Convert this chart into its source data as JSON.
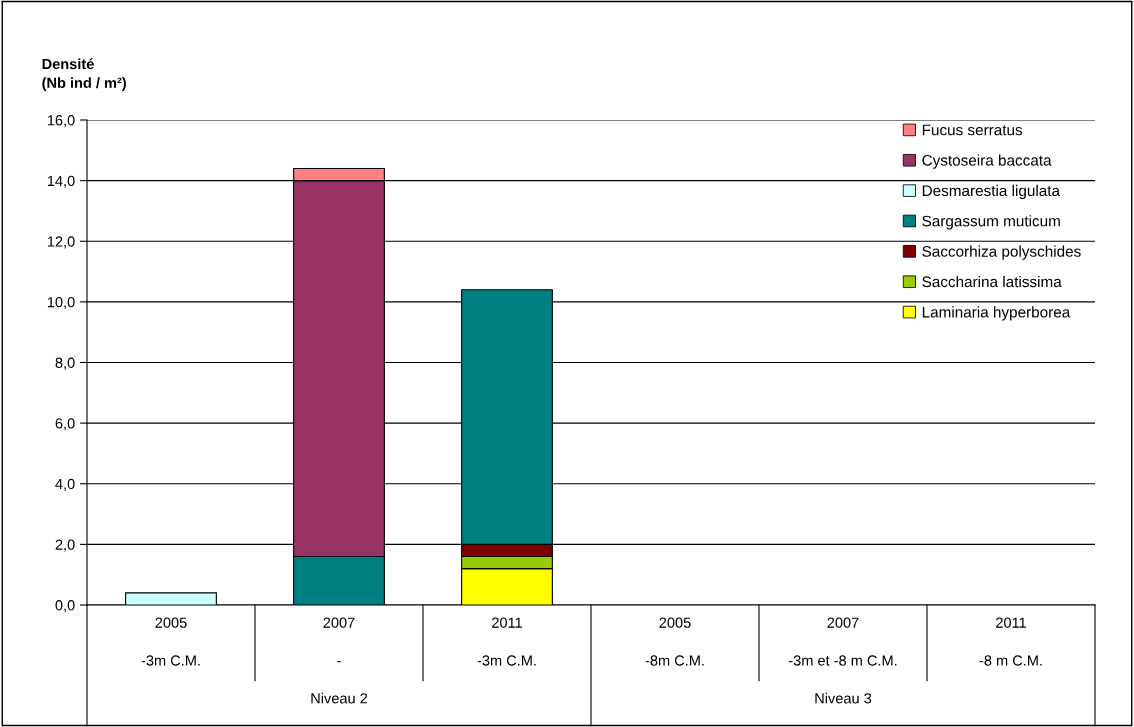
{
  "chart_data": {
    "type": "bar",
    "stacked": true,
    "ylabel": "Densité\n(Nb ind / m²)",
    "categories": [
      "2005",
      "2007",
      "2011",
      "2005",
      "2007",
      "2011"
    ],
    "annotations": [
      "-3m C.M.",
      "-",
      "-3m C.M.",
      "-8m C.M.",
      "-3m et -8 m C.M.",
      "-8 m C.M.",
      "Niveau 2",
      "Niveau 3"
    ],
    "series": [
      {
        "name": "Laminaria hyperborea",
        "color": "#ffff00",
        "values": [
          0,
          0,
          1.2,
          0,
          0,
          0
        ]
      },
      {
        "name": "Saccharina latissima",
        "color": "#99cc00",
        "values": [
          0,
          0,
          0.4,
          0,
          0,
          0
        ]
      },
      {
        "name": "Saccorhiza polyschides",
        "color": "#800000",
        "values": [
          0,
          0,
          0.4,
          0,
          0,
          0
        ]
      },
      {
        "name": "Sargassum muticum",
        "color": "#008080",
        "values": [
          0,
          1.6,
          8.4,
          0,
          0,
          0
        ]
      },
      {
        "name": "Desmarestia ligulata",
        "color": "#ccffff",
        "values": [
          0.4,
          0,
          0,
          0,
          0,
          0
        ]
      },
      {
        "name": "Cystoseira baccata",
        "color": "#993366",
        "values": [
          0,
          12.4,
          0,
          0,
          0,
          0
        ]
      },
      {
        "name": "Fucus serratus",
        "color": "#ff8080",
        "values": [
          0,
          0.4,
          0,
          0,
          0,
          0
        ]
      }
    ],
    "ylim": [
      0,
      16
    ],
    "yticks": [
      {
        "value": 0,
        "label": "0,0"
      },
      {
        "value": 2,
        "label": "2,0"
      },
      {
        "value": 4,
        "label": "4,0"
      },
      {
        "value": 6,
        "label": "6,0"
      },
      {
        "value": 8,
        "label": "8,0"
      },
      {
        "value": 10,
        "label": "10,0"
      },
      {
        "value": 12,
        "label": "12,0"
      },
      {
        "value": 14,
        "label": "14,0"
      },
      {
        "value": 16,
        "label": "16,0"
      }
    ],
    "grid": "y",
    "legend": "top right"
  }
}
